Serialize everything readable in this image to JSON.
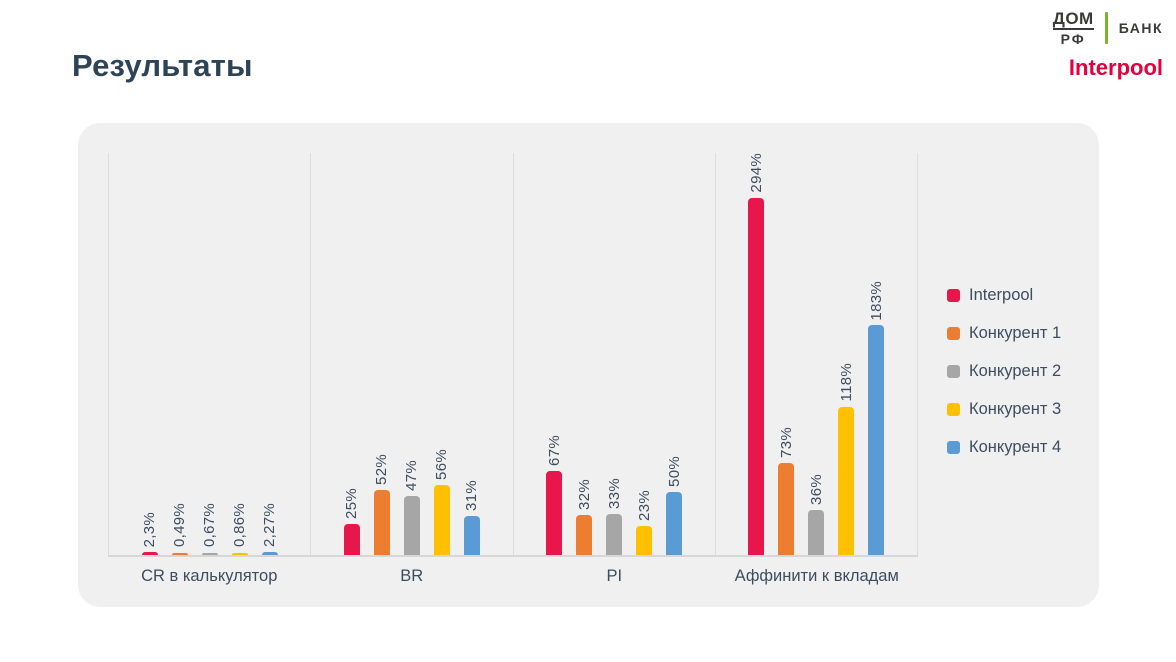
{
  "header": {
    "title": "Результаты",
    "logo_top": "ДОМ",
    "logo_bottom": "РФ",
    "bank_label": "БАНК",
    "brand_name": "Interpool",
    "brand_color": "#e4003c",
    "logo_divider_color": "#76b82a"
  },
  "colors": {
    "panel_background": "#f0f0f1",
    "page_background": "#ffffff",
    "grid_line": "#dddddf",
    "axis_line": "#d7d7d9",
    "text_dark": "#2d4357",
    "label_color": "#3d4c5e"
  },
  "chart_data": {
    "type": "bar",
    "title": "",
    "xlabel": "",
    "ylabel": "",
    "ylim": [
      0,
      320
    ],
    "grid": "vertical-category-separators",
    "legend_position": "right",
    "value_label_rotation": 90,
    "categories": [
      "CR в калькулятор",
      "BR",
      "PI",
      "Аффинити к вкладам"
    ],
    "series": [
      {
        "name": "Interpool",
        "color": "#e8174b",
        "values": [
          2.3,
          25,
          67,
          294
        ],
        "labels": [
          "2,3%",
          "25%",
          "67%",
          "294%"
        ]
      },
      {
        "name": "Конкурент 1",
        "color": "#ed7d31",
        "values": [
          0.49,
          52,
          32,
          73
        ],
        "labels": [
          "0,49%",
          "52%",
          "32%",
          "73%"
        ]
      },
      {
        "name": "Конкурент 2",
        "color": "#a6a6a6",
        "values": [
          0.67,
          47,
          33,
          36
        ],
        "labels": [
          "0,67%",
          "47%",
          "33%",
          "36%"
        ]
      },
      {
        "name": "Конкурент 3",
        "color": "#ffc000",
        "values": [
          0.86,
          56,
          23,
          118
        ],
        "labels": [
          "0,86%",
          "56%",
          "23%",
          "118%"
        ]
      },
      {
        "name": "Конкурент 4",
        "color": "#5b9bd5",
        "values": [
          2.27,
          31,
          50,
          183
        ],
        "labels": [
          "2,27%",
          "31%",
          "50%",
          "183%"
        ]
      }
    ]
  }
}
